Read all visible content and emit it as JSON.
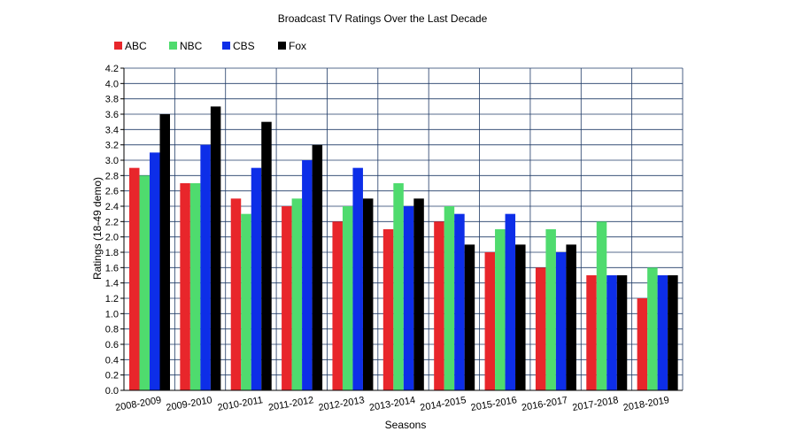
{
  "chart_data": {
    "type": "bar",
    "title": "Broadcast TV Ratings Over the Last Decade",
    "xlabel": "Seasons",
    "ylabel": "Ratings (18-49 demo)",
    "ylim": [
      0,
      4.2
    ],
    "y_tick_step": 0.2,
    "grid": true,
    "legend_position": "top-left",
    "categories": [
      "2008-2009",
      "2009-2010",
      "2010-2011",
      "2011-2012",
      "2012-2013",
      "2013-2014",
      "2014-2015",
      "2015-2016",
      "2016-2017",
      "2017-2018",
      "2018-2019"
    ],
    "series": [
      {
        "name": "ABC",
        "color": "#e8262b",
        "values": [
          2.9,
          2.7,
          2.5,
          2.4,
          2.2,
          2.1,
          2.2,
          1.8,
          1.6,
          1.5,
          1.2
        ]
      },
      {
        "name": "NBC",
        "color": "#4fdb6e",
        "values": [
          2.8,
          2.7,
          2.3,
          2.5,
          2.4,
          2.7,
          2.4,
          2.1,
          2.1,
          2.2,
          1.6
        ]
      },
      {
        "name": "CBS",
        "color": "#0d2ee8",
        "values": [
          3.1,
          3.2,
          2.9,
          3.0,
          2.9,
          2.4,
          2.3,
          2.3,
          1.8,
          1.5,
          1.5
        ]
      },
      {
        "name": "Fox",
        "color": "#000000",
        "values": [
          3.6,
          3.7,
          3.5,
          3.2,
          2.5,
          2.5,
          1.9,
          1.9,
          1.9,
          1.5,
          1.5
        ]
      }
    ],
    "colors": {
      "grid": "#1f3a66",
      "axis": "#000000",
      "text": "#000000"
    }
  }
}
